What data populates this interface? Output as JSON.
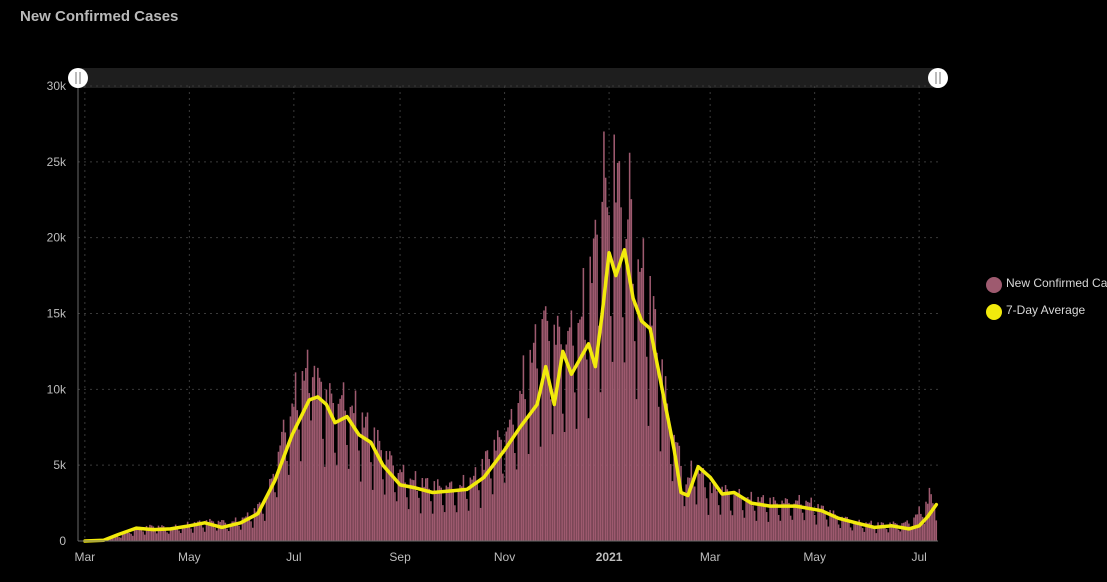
{
  "title": "New Confirmed Cases",
  "colors": {
    "bars": "#9e5a6f",
    "average": "#f2ea0c",
    "grid": "#3a3a3a",
    "axis_text": "#bdbdbd",
    "scrollbar": "#1e1e1e"
  },
  "chart_data": {
    "type": "bar",
    "title": "New Confirmed Cases",
    "xlabel": "",
    "ylabel": "",
    "ylim": [
      0,
      30000
    ],
    "yticks": [
      0,
      5000,
      10000,
      15000,
      20000,
      25000,
      30000
    ],
    "ytick_labels": [
      "0",
      "5k",
      "10k",
      "15k",
      "20k",
      "25k",
      "30k"
    ],
    "xtick_labels": [
      "Mar",
      "May",
      "Jul",
      "Sep",
      "Nov",
      "2021",
      "Mar",
      "May",
      "Jul"
    ],
    "xtick_dates": [
      "2020-03-01",
      "2020-05-01",
      "2020-07-01",
      "2020-09-01",
      "2020-11-01",
      "2021-01-01",
      "2021-03-01",
      "2021-05-01",
      "2021-07-01"
    ],
    "x_range": [
      "2020-02-26",
      "2021-07-12"
    ],
    "grid": true,
    "legend_position": "right",
    "series": [
      {
        "name": "New Confirmed Cases",
        "kind": "bar",
        "points": [
          [
            "2020-03-01",
            0
          ],
          [
            "2020-03-10",
            50
          ],
          [
            "2020-03-20",
            300
          ],
          [
            "2020-03-31",
            700
          ],
          [
            "2020-04-10",
            900
          ],
          [
            "2020-04-20",
            800
          ],
          [
            "2020-05-01",
            1000
          ],
          [
            "2020-05-15",
            1200
          ],
          [
            "2020-05-25",
            1100
          ],
          [
            "2020-06-05",
            1500
          ],
          [
            "2020-06-15",
            2500
          ],
          [
            "2020-06-25",
            6500
          ],
          [
            "2020-07-05",
            9500
          ],
          [
            "2020-07-10",
            10000
          ],
          [
            "2020-07-20",
            8500
          ],
          [
            "2020-08-01",
            8300
          ],
          [
            "2020-08-15",
            6500
          ],
          [
            "2020-08-25",
            5000
          ],
          [
            "2020-09-05",
            3700
          ],
          [
            "2020-09-20",
            3300
          ],
          [
            "2020-10-05",
            3200
          ],
          [
            "2020-10-15",
            3800
          ],
          [
            "2020-10-25",
            5500
          ],
          [
            "2020-11-05",
            7000
          ],
          [
            "2020-11-15",
            10500
          ],
          [
            "2020-11-25",
            12500
          ],
          [
            "2020-12-05",
            12000
          ],
          [
            "2020-12-15",
            13000
          ],
          [
            "2020-12-25",
            17500
          ],
          [
            "2021-01-01",
            20000
          ],
          [
            "2021-01-08",
            21000
          ],
          [
            "2021-01-15",
            17000
          ],
          [
            "2021-01-25",
            14500
          ],
          [
            "2021-02-05",
            7500
          ],
          [
            "2021-02-15",
            3500
          ],
          [
            "2021-02-20",
            4500
          ],
          [
            "2021-03-01",
            3200
          ],
          [
            "2021-03-10",
            3000
          ],
          [
            "2021-03-25",
            2500
          ],
          [
            "2021-04-10",
            2300
          ],
          [
            "2021-04-25",
            2400
          ],
          [
            "2021-05-10",
            1700
          ],
          [
            "2021-05-25",
            1100
          ],
          [
            "2021-06-10",
            1000
          ],
          [
            "2021-06-25",
            1100
          ],
          [
            "2021-07-05",
            2200
          ],
          [
            "2021-07-10",
            2600
          ]
        ],
        "peaks": [
          [
            "2020-12-29",
            27000
          ],
          [
            "2021-01-04",
            26800
          ],
          [
            "2021-01-13",
            25600
          ],
          [
            "2020-12-31",
            22000
          ],
          [
            "2021-01-08",
            22000
          ],
          [
            "2020-12-25",
            20200
          ],
          [
            "2021-01-20",
            18000
          ],
          [
            "2020-11-24",
            15200
          ],
          [
            "2020-12-10",
            15200
          ],
          [
            "2020-07-12",
            10800
          ],
          [
            "2020-07-17",
            10500
          ],
          [
            "2021-07-07",
            3500
          ]
        ]
      },
      {
        "name": "7-Day Average",
        "kind": "line",
        "points": [
          [
            "2020-03-01",
            0
          ],
          [
            "2020-03-12",
            50
          ],
          [
            "2020-03-20",
            400
          ],
          [
            "2020-03-31",
            850
          ],
          [
            "2020-04-10",
            750
          ],
          [
            "2020-04-20",
            800
          ],
          [
            "2020-05-01",
            1000
          ],
          [
            "2020-05-10",
            1200
          ],
          [
            "2020-05-20",
            900
          ],
          [
            "2020-05-31",
            1200
          ],
          [
            "2020-06-10",
            1800
          ],
          [
            "2020-06-20",
            4000
          ],
          [
            "2020-06-30",
            7000
          ],
          [
            "2020-07-10",
            9300
          ],
          [
            "2020-07-15",
            9500
          ],
          [
            "2020-07-20",
            9000
          ],
          [
            "2020-07-25",
            7800
          ],
          [
            "2020-08-01",
            8200
          ],
          [
            "2020-08-08",
            7000
          ],
          [
            "2020-08-15",
            6500
          ],
          [
            "2020-08-22",
            5000
          ],
          [
            "2020-09-01",
            3700
          ],
          [
            "2020-09-10",
            3500
          ],
          [
            "2020-09-20",
            3200
          ],
          [
            "2020-10-01",
            3300
          ],
          [
            "2020-10-10",
            3400
          ],
          [
            "2020-10-20",
            4200
          ],
          [
            "2020-11-01",
            6000
          ],
          [
            "2020-11-10",
            7500
          ],
          [
            "2020-11-20",
            9000
          ],
          [
            "2020-11-25",
            11500
          ],
          [
            "2020-11-30",
            9000
          ],
          [
            "2020-12-05",
            12500
          ],
          [
            "2020-12-10",
            11000
          ],
          [
            "2020-12-15",
            12000
          ],
          [
            "2020-12-20",
            13000
          ],
          [
            "2020-12-24",
            11500
          ],
          [
            "2020-12-28",
            15000
          ],
          [
            "2021-01-01",
            19000
          ],
          [
            "2021-01-05",
            17500
          ],
          [
            "2021-01-10",
            19200
          ],
          [
            "2021-01-15",
            16000
          ],
          [
            "2021-01-20",
            14500
          ],
          [
            "2021-01-25",
            14000
          ],
          [
            "2021-02-01",
            10000
          ],
          [
            "2021-02-08",
            6000
          ],
          [
            "2021-02-12",
            3200
          ],
          [
            "2021-02-16",
            3000
          ],
          [
            "2021-02-22",
            4900
          ],
          [
            "2021-03-01",
            4200
          ],
          [
            "2021-03-08",
            3100
          ],
          [
            "2021-03-15",
            3200
          ],
          [
            "2021-03-25",
            2500
          ],
          [
            "2021-04-05",
            2300
          ],
          [
            "2021-04-20",
            2300
          ],
          [
            "2021-05-05",
            2000
          ],
          [
            "2021-05-15",
            1500
          ],
          [
            "2021-05-25",
            1200
          ],
          [
            "2021-06-05",
            900
          ],
          [
            "2021-06-15",
            1000
          ],
          [
            "2021-06-25",
            800
          ],
          [
            "2021-07-01",
            1000
          ],
          [
            "2021-07-06",
            1600
          ],
          [
            "2021-07-11",
            2400
          ]
        ]
      }
    ]
  },
  "legend": [
    {
      "label": "New Confirmed Cases",
      "swatch": "bars"
    },
    {
      "label": "7-Day Average",
      "swatch": "average"
    }
  ]
}
